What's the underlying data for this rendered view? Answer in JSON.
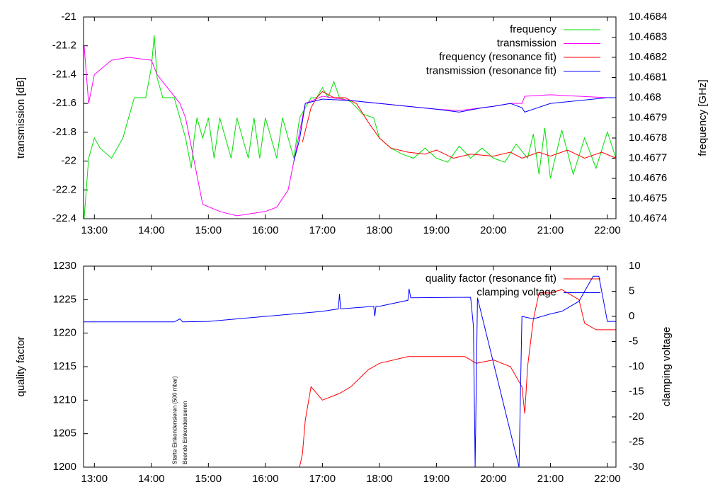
{
  "chart_data": [
    {
      "type": "line",
      "y_label": "transmission [dB]",
      "y2_label": "frequency [GHz]",
      "xlim": [
        12.81,
        22.15
      ],
      "xticks": [
        {
          "value": 13,
          "label": "13:00"
        },
        {
          "value": 14,
          "label": "14:00"
        },
        {
          "value": 15,
          "label": "15:00"
        },
        {
          "value": 16,
          "label": "16:00"
        },
        {
          "value": 17,
          "label": "17:00"
        },
        {
          "value": 18,
          "label": "18:00"
        },
        {
          "value": 19,
          "label": "19:00"
        },
        {
          "value": 20,
          "label": "20:00"
        },
        {
          "value": 21,
          "label": "21:00"
        },
        {
          "value": 22,
          "label": "22:00"
        }
      ],
      "ylim": [
        -22.4,
        -21
      ],
      "yticks": [
        -22.4,
        -22.2,
        -22,
        -21.8,
        -21.6,
        -21.4,
        -21.2,
        -21
      ],
      "y2lim": [
        10.4674,
        10.4684
      ],
      "y2ticks": [
        10.4674,
        10.4675,
        10.4676,
        10.4677,
        10.4678,
        10.4679,
        10.468,
        10.4681,
        10.4682,
        10.4683,
        10.4684
      ],
      "legend": "top-right",
      "series": [
        {
          "name": "frequency",
          "color": "#00e000",
          "axis": "y2",
          "x": [
            12.82,
            12.9,
            13.0,
            13.1,
            13.3,
            13.5,
            13.6,
            13.7,
            13.9,
            14.0,
            14.05,
            14.1,
            14.2,
            14.4,
            14.5,
            14.6,
            14.7,
            14.75,
            14.8,
            14.9,
            15.0,
            15.1,
            15.2,
            15.3,
            15.4,
            15.5,
            15.6,
            15.7,
            15.8,
            15.9,
            16.0,
            16.1,
            16.2,
            16.3,
            16.4,
            16.5,
            16.6,
            16.7,
            16.8,
            16.9,
            17.0,
            17.1,
            17.2,
            17.3,
            17.5,
            17.7,
            17.9,
            18.0,
            18.2,
            18.4,
            18.6,
            18.8,
            19.0,
            19.2,
            19.4,
            19.6,
            19.8,
            20.0,
            20.2,
            20.4,
            20.6,
            20.7,
            20.8,
            20.9,
            21.0,
            21.2,
            21.4,
            21.6,
            21.8,
            22.0,
            22.15
          ],
          "values": [
            10.4674,
            10.4677,
            10.4678,
            10.46775,
            10.4677,
            10.4678,
            10.4679,
            10.468,
            10.468,
            10.46815,
            10.46831,
            10.4681,
            10.468,
            10.468,
            10.4679,
            10.4678,
            10.46765,
            10.4678,
            10.4679,
            10.4678,
            10.4679,
            10.4677,
            10.4679,
            10.4678,
            10.4677,
            10.4679,
            10.4678,
            10.4677,
            10.4679,
            10.4677,
            10.4679,
            10.4678,
            10.4677,
            10.4679,
            10.4678,
            10.4677,
            10.4679,
            10.46795,
            10.468,
            10.468,
            10.46805,
            10.468,
            10.46808,
            10.468,
            10.46798,
            10.46792,
            10.4679,
            10.4678,
            10.46775,
            10.46772,
            10.4677,
            10.46775,
            10.4677,
            10.46768,
            10.46776,
            10.4677,
            10.46775,
            10.4677,
            10.46768,
            10.46777,
            10.4677,
            10.46782,
            10.46762,
            10.46785,
            10.4676,
            10.46784,
            10.46762,
            10.4678,
            10.46765,
            10.46783,
            10.4677
          ]
        },
        {
          "name": "transmission",
          "color": "#ff00ff",
          "axis": "y",
          "x": [
            12.82,
            12.9,
            13.0,
            13.3,
            13.6,
            14.0,
            14.1,
            14.3,
            14.5,
            14.6,
            14.7,
            14.8,
            14.9,
            15.2,
            15.5,
            16.0,
            16.2,
            16.4,
            16.5,
            16.6,
            16.7,
            17.0,
            17.5,
            18.0,
            18.5,
            19.0,
            19.4,
            19.8,
            20.0,
            20.3,
            20.5,
            20.55,
            21.0,
            21.5,
            22.0,
            22.15
          ],
          "values": [
            -21.2,
            -21.6,
            -21.4,
            -21.3,
            -21.28,
            -21.3,
            -21.4,
            -21.5,
            -21.6,
            -21.7,
            -21.9,
            -22.1,
            -22.3,
            -22.35,
            -22.38,
            -22.35,
            -22.32,
            -22.2,
            -22.0,
            -21.8,
            -21.6,
            -21.55,
            -21.58,
            -21.6,
            -21.62,
            -21.64,
            -21.65,
            -21.63,
            -21.62,
            -21.6,
            -21.6,
            -21.55,
            -21.54,
            -21.55,
            -21.56,
            -21.56
          ]
        },
        {
          "name": "frequency (resonance fit)",
          "color": "#ff0000",
          "axis": "y2",
          "x": [
            16.65,
            16.8,
            16.9,
            17.0,
            17.2,
            17.4,
            17.6,
            17.8,
            18.0,
            18.2,
            18.5,
            18.8,
            19.0,
            19.3,
            19.6,
            20.0,
            20.3,
            20.5,
            20.8,
            21.0,
            21.3,
            21.6,
            21.9,
            22.15
          ],
          "values": [
            10.46778,
            10.46795,
            10.468,
            10.46803,
            10.468,
            10.468,
            10.46797,
            10.46788,
            10.4678,
            10.46775,
            10.46773,
            10.46772,
            10.46774,
            10.4677,
            10.46772,
            10.46771,
            10.46773,
            10.4677,
            10.46773,
            10.46771,
            10.46774,
            10.4677,
            10.46773,
            10.4677
          ]
        },
        {
          "name": "transmission (resonance fit)",
          "color": "#0000ff",
          "axis": "y",
          "x": [
            16.5,
            16.6,
            16.7,
            17.0,
            17.5,
            18.0,
            18.5,
            19.0,
            19.4,
            19.8,
            20.0,
            20.3,
            20.5,
            20.55,
            21.0,
            21.5,
            22.0,
            22.15
          ],
          "values": [
            -22.0,
            -21.85,
            -21.6,
            -21.57,
            -21.58,
            -21.6,
            -21.62,
            -21.64,
            -21.66,
            -21.63,
            -21.62,
            -21.6,
            -21.63,
            -21.66,
            -21.6,
            -21.58,
            -21.56,
            -21.56
          ]
        }
      ]
    },
    {
      "type": "line",
      "y_label": "quality factor",
      "y2_label": "clamping voltage",
      "xlim": [
        12.81,
        22.15
      ],
      "xticks": [
        {
          "value": 13,
          "label": "13:00"
        },
        {
          "value": 14,
          "label": "14:00"
        },
        {
          "value": 15,
          "label": "15:00"
        },
        {
          "value": 16,
          "label": "16:00"
        },
        {
          "value": 17,
          "label": "17:00"
        },
        {
          "value": 18,
          "label": "18:00"
        },
        {
          "value": 19,
          "label": "19:00"
        },
        {
          "value": 20,
          "label": "20:00"
        },
        {
          "value": 21,
          "label": "21:00"
        },
        {
          "value": 22,
          "label": "22:00"
        }
      ],
      "ylim": [
        1200,
        1230
      ],
      "yticks": [
        1200,
        1205,
        1210,
        1215,
        1220,
        1225,
        1230
      ],
      "y2lim": [
        -30,
        10
      ],
      "y2ticks": [
        -30,
        -25,
        -20,
        -15,
        -10,
        -5,
        0,
        5,
        10
      ],
      "legend": "top-right",
      "annotations": [
        {
          "text": "Starte Einkondensieren (500 mbar)",
          "x": 14.42
        },
        {
          "text": "Beende Einkondensieren",
          "x": 14.6
        }
      ],
      "series": [
        {
          "name": "quality factor (resonance fit)",
          "color": "#ff0000",
          "axis": "y",
          "x": [
            16.6,
            16.65,
            16.7,
            16.8,
            17.0,
            17.3,
            17.5,
            17.8,
            18.0,
            18.5,
            19.0,
            19.5,
            19.7,
            20.0,
            20.3,
            20.5,
            20.55,
            20.6,
            20.7,
            20.8,
            21.0,
            21.2,
            21.5,
            21.6,
            21.8,
            22.0,
            22.15
          ],
          "values": [
            1200,
            1202,
            1207,
            1212,
            1210,
            1211,
            1212,
            1214.5,
            1215.5,
            1216.5,
            1216.5,
            1216.5,
            1215.5,
            1216,
            1215,
            1212,
            1208,
            1215,
            1222,
            1226,
            1226,
            1226.5,
            1225,
            1221.5,
            1220.5,
            1220.5,
            1220.5
          ]
        },
        {
          "name": "clamping voltage",
          "color": "#0000ff",
          "axis": "y2",
          "x": [
            12.81,
            14.4,
            14.5,
            14.55,
            15.0,
            16.0,
            17.0,
            17.28,
            17.3,
            17.32,
            17.9,
            17.92,
            17.94,
            18.0,
            18.5,
            18.52,
            18.55,
            19.6,
            19.65,
            19.68,
            19.72,
            20.45,
            20.5,
            20.7,
            21.0,
            21.2,
            21.5,
            21.75,
            21.85,
            22.0,
            22.15
          ],
          "values": [
            -1.1,
            -1.1,
            -0.5,
            -1.1,
            -1.0,
            0.0,
            1.0,
            1.5,
            4.5,
            1.5,
            2.0,
            0.0,
            2.0,
            2.0,
            3.2,
            5.5,
            3.7,
            3.8,
            -2,
            -30,
            3.7,
            -30,
            0,
            -0.5,
            0.5,
            1,
            3,
            8,
            8,
            -1,
            -1
          ]
        }
      ]
    }
  ]
}
